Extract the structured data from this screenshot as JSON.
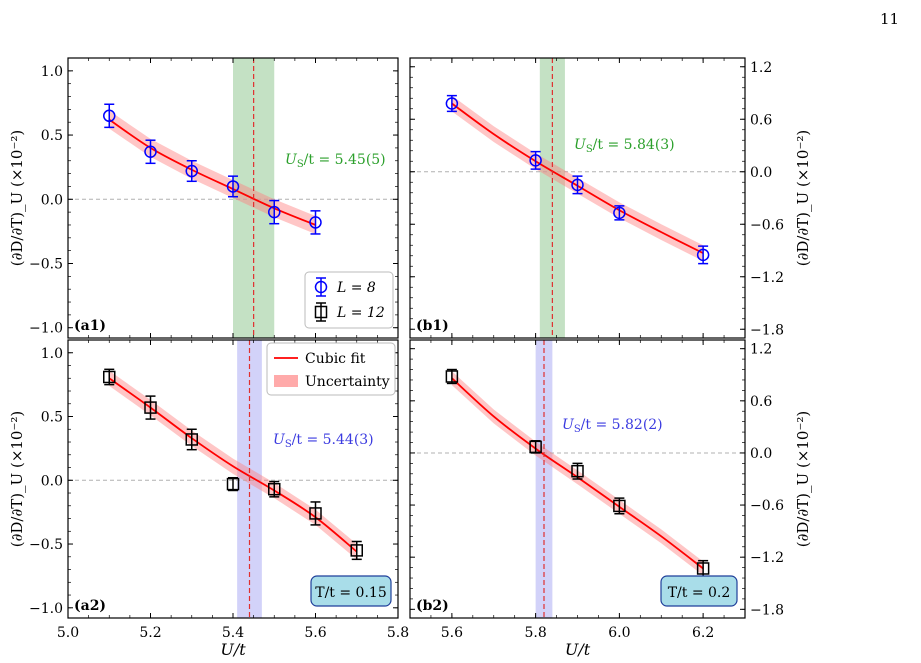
{
  "page_number": "11",
  "chart_data": [
    {
      "id": "a1",
      "type": "scatter",
      "panel_label": "(a1)",
      "xlim": [
        5.0,
        5.8
      ],
      "ylim": [
        -1.08,
        1.1
      ],
      "yticks": [
        -1.0,
        -0.5,
        0.0,
        0.5,
        1.0
      ],
      "ytick_labels": [
        "−1.0",
        "−0.5",
        "0.0",
        "0.5",
        "1.0"
      ],
      "y_axis_side": "left",
      "ylabel": "(∂D/∂T)_U (×10⁻²)",
      "series": [
        {
          "name": "L = 8",
          "marker": "circle",
          "color": "#0000ff",
          "x": [
            5.1,
            5.2,
            5.3,
            5.4,
            5.5,
            5.6
          ],
          "y": [
            0.65,
            0.37,
            0.22,
            0.1,
            -0.1,
            -0.18
          ],
          "err": [
            0.09,
            0.09,
            0.08,
            0.08,
            0.09,
            0.09
          ]
        }
      ],
      "fit": {
        "x": [
          5.1,
          5.2,
          5.3,
          5.4,
          5.5,
          5.6
        ],
        "y": [
          0.62,
          0.4,
          0.23,
          0.08,
          -0.07,
          -0.2
        ],
        "band": 0.07,
        "color": "#ff0000"
      },
      "crossing": {
        "value": 5.45,
        "error": 0.05,
        "band_color": "#3a9c3a",
        "label": "U_S/t = 5.45(5)",
        "label_color": "#2ca02c"
      },
      "legend": {
        "entries": [
          {
            "label": "L = 8",
            "marker": "circle",
            "color": "#0000ff"
          },
          {
            "label": "L = 12",
            "marker": "square",
            "color": "#000000"
          }
        ],
        "position": "bottom-right"
      }
    },
    {
      "id": "b1",
      "type": "scatter",
      "panel_label": "(b1)",
      "xlim": [
        5.5,
        6.3
      ],
      "ylim": [
        -1.9,
        1.3
      ],
      "yticks": [
        -1.8,
        -1.2,
        -0.6,
        0.0,
        0.6,
        1.2
      ],
      "ytick_labels": [
        "−1.8",
        "−1.2",
        "−0.6",
        "0.0",
        "0.6",
        "1.2"
      ],
      "y_axis_side": "right",
      "ylabel": "(∂D/∂T)_U (×10⁻²)",
      "series": [
        {
          "name": "L = 8",
          "marker": "circle",
          "color": "#0000ff",
          "x": [
            5.6,
            5.8,
            5.9,
            6.0,
            6.2
          ],
          "y": [
            0.78,
            0.13,
            -0.15,
            -0.47,
            -0.95
          ],
          "err": [
            0.09,
            0.1,
            0.1,
            0.08,
            0.1
          ]
        }
      ],
      "fit": {
        "x": [
          5.6,
          5.7,
          5.8,
          5.9,
          6.0,
          6.1,
          6.2
        ],
        "y": [
          0.78,
          0.43,
          0.12,
          -0.16,
          -0.44,
          -0.69,
          -0.93
        ],
        "band": 0.09,
        "color": "#ff0000"
      },
      "crossing": {
        "value": 5.84,
        "error": 0.03,
        "band_color": "#3a9c3a",
        "label": "U_S/t = 5.84(3)",
        "label_color": "#2ca02c"
      }
    },
    {
      "id": "a2",
      "type": "scatter",
      "panel_label": "(a2)",
      "xlim": [
        5.0,
        5.8
      ],
      "ylim": [
        -1.08,
        1.1
      ],
      "yticks": [
        -1.0,
        -0.5,
        0.0,
        0.5,
        1.0
      ],
      "ytick_labels": [
        "−1.0",
        "−0.5",
        "0.0",
        "0.5",
        "1.0"
      ],
      "xticks": [
        5.0,
        5.2,
        5.4,
        5.6,
        5.8
      ],
      "xtick_labels": [
        "5.0",
        "5.2",
        "5.4",
        "5.6",
        "5.8"
      ],
      "xlabel": "U/t",
      "y_axis_side": "left",
      "ylabel": "(∂D/∂T)_U (×10⁻²)",
      "series": [
        {
          "name": "L = 12",
          "marker": "square",
          "color": "#000000",
          "x": [
            5.1,
            5.2,
            5.3,
            5.4,
            5.5,
            5.6,
            5.7
          ],
          "y": [
            0.81,
            0.57,
            0.32,
            -0.03,
            -0.07,
            -0.26,
            -0.55
          ],
          "err": [
            0.06,
            0.09,
            0.08,
            0.05,
            0.06,
            0.09,
            0.07
          ]
        }
      ],
      "fit": {
        "x": [
          5.1,
          5.2,
          5.3,
          5.4,
          5.5,
          5.6,
          5.7
        ],
        "y": [
          0.8,
          0.57,
          0.33,
          0.11,
          -0.08,
          -0.29,
          -0.56
        ],
        "band": 0.06,
        "color": "#ff0000"
      },
      "crossing": {
        "value": 5.44,
        "error": 0.03,
        "band_color": "#6b6bea",
        "label": "U_S/t = 5.44(3)",
        "label_color": "#3b3be0"
      },
      "legend": {
        "entries": [
          {
            "label": "Cubic fit",
            "kind": "line",
            "color": "#ff0000"
          },
          {
            "label": "Uncertainty",
            "kind": "patch",
            "color": "#ffaaaa"
          }
        ],
        "position": "top-right"
      },
      "temperature_box": "T/t = 0.15"
    },
    {
      "id": "b2",
      "type": "scatter",
      "panel_label": "(b2)",
      "xlim": [
        5.5,
        6.3
      ],
      "ylim": [
        -1.9,
        1.3
      ],
      "yticks": [
        -1.8,
        -1.2,
        -0.6,
        0.0,
        0.6,
        1.2
      ],
      "ytick_labels": [
        "−1.8",
        "−1.2",
        "−0.6",
        "0.0",
        "0.6",
        "1.2"
      ],
      "xticks": [
        5.6,
        5.8,
        6.0,
        6.2
      ],
      "xtick_labels": [
        "5.6",
        "5.8",
        "6.0",
        "6.2"
      ],
      "xlabel": "U/t",
      "y_axis_side": "right",
      "ylabel": "(∂D/∂T)_U (×10⁻²)",
      "series": [
        {
          "name": "L = 12",
          "marker": "square",
          "color": "#000000",
          "x": [
            5.6,
            5.8,
            5.9,
            6.0,
            6.2
          ],
          "y": [
            0.88,
            0.07,
            -0.21,
            -0.61,
            -1.33
          ],
          "err": [
            0.08,
            0.07,
            0.09,
            0.09,
            0.09
          ]
        }
      ],
      "fit": {
        "x": [
          5.6,
          5.7,
          5.8,
          5.9,
          6.0,
          6.1,
          6.2
        ],
        "y": [
          0.86,
          0.42,
          0.05,
          -0.28,
          -0.62,
          -0.96,
          -1.33
        ],
        "band": 0.08,
        "color": "#ff0000"
      },
      "crossing": {
        "value": 5.82,
        "error": 0.02,
        "band_color": "#6b6bea",
        "label": "U_S/t = 5.82(2)",
        "label_color": "#3b3be0"
      },
      "temperature_box": "T/t = 0.2"
    }
  ]
}
